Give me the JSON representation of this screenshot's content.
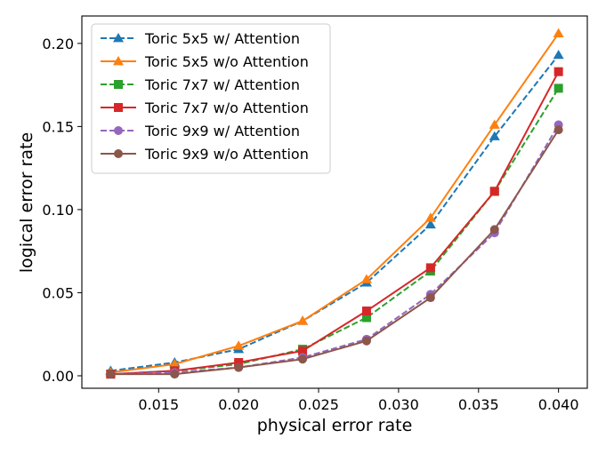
{
  "chart_data": {
    "type": "line",
    "xlabel": "physical error rate",
    "ylabel": "logical error rate",
    "xlim": [
      0.0102,
      0.0418
    ],
    "ylim": [
      -0.0075,
      0.2165
    ],
    "x_ticks": [
      "0.015",
      "0.020",
      "0.025",
      "0.030",
      "0.035",
      "0.040"
    ],
    "x_tick_values": [
      0.015,
      0.02,
      0.025,
      0.03,
      0.035,
      0.04
    ],
    "y_ticks": [
      "0.00",
      "0.05",
      "0.10",
      "0.15",
      "0.20"
    ],
    "y_tick_values": [
      0.0,
      0.05,
      0.1,
      0.15,
      0.2
    ],
    "grid": false,
    "legend_position": "upper-left",
    "x": [
      0.012,
      0.016,
      0.02,
      0.024,
      0.028,
      0.032,
      0.036,
      0.04
    ],
    "series": [
      {
        "name": "Toric 5x5 w/ Attention",
        "values": [
          0.003,
          0.008,
          0.016,
          0.033,
          0.056,
          0.091,
          0.144,
          0.193
        ],
        "color": "#1f77b4",
        "dashed": true,
        "marker": "triangle"
      },
      {
        "name": "Toric 5x5 w/o Attention",
        "values": [
          0.002,
          0.007,
          0.018,
          0.033,
          0.058,
          0.095,
          0.151,
          0.206
        ],
        "color": "#ff7f0e",
        "dashed": false,
        "marker": "triangle"
      },
      {
        "name": "Toric 7x7 w/ Attention",
        "values": [
          0.001,
          0.003,
          0.007,
          0.016,
          0.035,
          0.063,
          0.111,
          0.173
        ],
        "color": "#2ca02c",
        "dashed": true,
        "marker": "square"
      },
      {
        "name": "Toric 7x7 w/o Attention",
        "values": [
          0.001,
          0.003,
          0.008,
          0.015,
          0.039,
          0.065,
          0.111,
          0.183
        ],
        "color": "#d62728",
        "dashed": false,
        "marker": "square"
      },
      {
        "name": "Toric 9x9 w/ Attention",
        "values": [
          0.001,
          0.002,
          0.005,
          0.011,
          0.022,
          0.049,
          0.086,
          0.151
        ],
        "color": "#9467bd",
        "dashed": true,
        "marker": "circle"
      },
      {
        "name": "Toric 9x9 w/o Attention",
        "values": [
          0.001,
          0.001,
          0.005,
          0.01,
          0.021,
          0.047,
          0.088,
          0.148
        ],
        "color": "#8c564b",
        "dashed": false,
        "marker": "circle"
      }
    ]
  }
}
